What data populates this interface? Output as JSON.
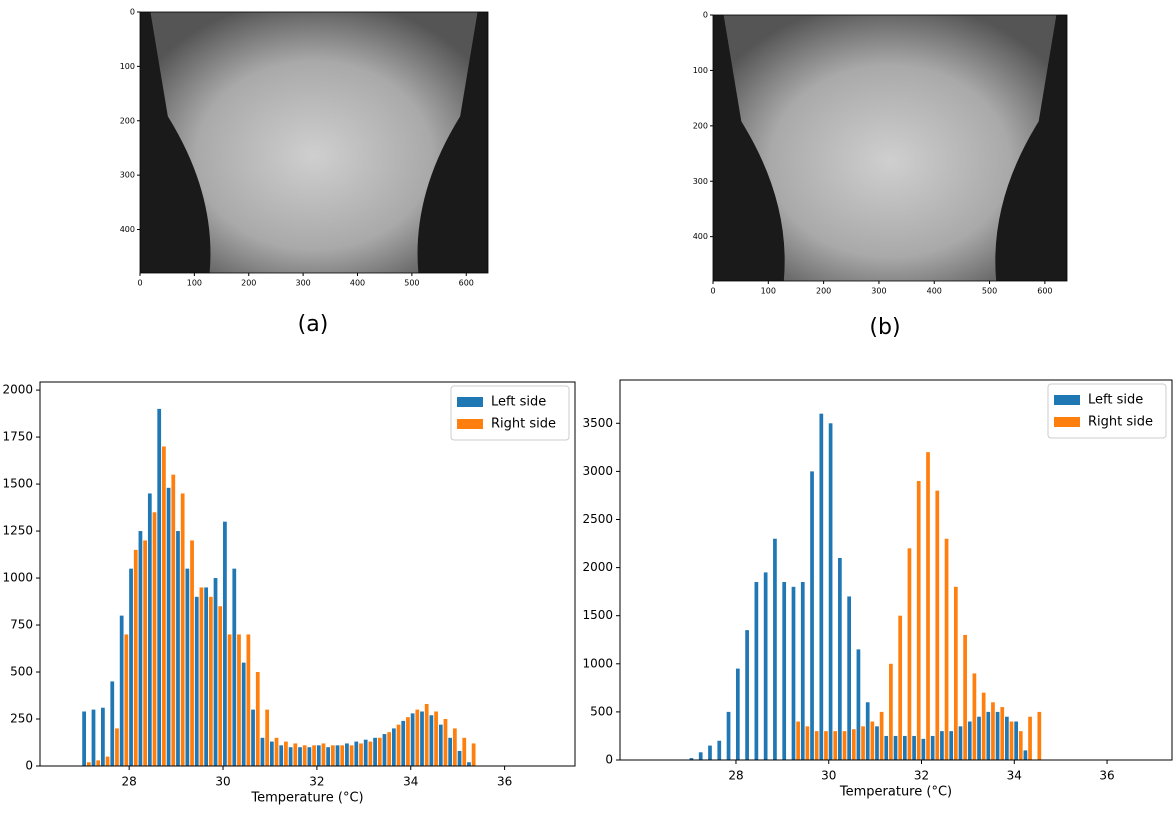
{
  "chart_data": [
    {
      "type": "image",
      "caption": "(a)",
      "xlim": [
        0,
        640
      ],
      "ylim": [
        480,
        0
      ],
      "xticks": [
        0,
        100,
        200,
        300,
        400,
        500,
        600
      ],
      "yticks": [
        0,
        100,
        200,
        300,
        400
      ]
    },
    {
      "type": "image",
      "caption": "(b)",
      "xlim": [
        0,
        640
      ],
      "ylim": [
        480,
        0
      ],
      "xticks": [
        0,
        100,
        200,
        300,
        400,
        500,
        600
      ],
      "yticks": [
        0,
        100,
        200,
        300,
        400
      ]
    },
    {
      "type": "histogram",
      "xlabel": "Temperature (°C)",
      "legend": "upper right",
      "bins": [
        27.0,
        27.2,
        27.4,
        27.6,
        27.8,
        28.0,
        28.2,
        28.4,
        28.6,
        28.8,
        29.0,
        29.2,
        29.4,
        29.6,
        29.8,
        30.0,
        30.2,
        30.4,
        30.6,
        30.8,
        31.0,
        31.2,
        31.4,
        31.6,
        31.8,
        32.0,
        32.2,
        32.4,
        32.6,
        32.8,
        33.0,
        33.2,
        33.4,
        33.6,
        33.8,
        34.0,
        34.2,
        34.4,
        34.6,
        34.8,
        35.0,
        35.2,
        35.4
      ],
      "series": [
        {
          "name": "Left side",
          "color": "#1f77b4",
          "values": [
            290,
            300,
            310,
            450,
            800,
            1050,
            1250,
            1450,
            1900,
            1480,
            1250,
            1050,
            900,
            950,
            1000,
            1300,
            1050,
            550,
            300,
            150,
            130,
            110,
            100,
            100,
            100,
            110,
            100,
            110,
            120,
            130,
            140,
            150,
            170,
            200,
            240,
            280,
            290,
            270,
            220,
            150,
            80,
            20
          ]
        },
        {
          "name": "Right side",
          "color": "#ff7f0e",
          "values": [
            20,
            30,
            50,
            200,
            700,
            1150,
            1200,
            1350,
            1700,
            1550,
            1450,
            1200,
            950,
            900,
            850,
            700,
            700,
            700,
            500,
            300,
            150,
            130,
            120,
            110,
            110,
            120,
            110,
            110,
            110,
            120,
            130,
            150,
            180,
            220,
            260,
            300,
            330,
            290,
            250,
            200,
            150,
            120
          ]
        }
      ],
      "xlim": [
        26.1,
        37.5
      ],
      "xticks": [
        28,
        30,
        32,
        34,
        36
      ],
      "ylim": [
        0,
        2043
      ],
      "yticks": [
        0,
        250,
        500,
        750,
        1000,
        1250,
        1500,
        1750,
        2000
      ]
    },
    {
      "type": "histogram",
      "xlabel": "Temperature (°C)",
      "legend": "upper right",
      "bins": [
        27.0,
        27.2,
        27.4,
        27.6,
        27.8,
        28.0,
        28.2,
        28.4,
        28.6,
        28.8,
        29.0,
        29.2,
        29.4,
        29.6,
        29.8,
        30.0,
        30.2,
        30.4,
        30.6,
        30.8,
        31.0,
        31.2,
        31.4,
        31.6,
        31.8,
        32.0,
        32.2,
        32.4,
        32.6,
        32.8,
        33.0,
        33.2,
        33.4,
        33.6,
        33.8,
        34.0,
        34.2,
        34.4,
        34.6,
        34.8,
        35.0,
        35.2,
        35.4
      ],
      "series": [
        {
          "name": "Left side",
          "color": "#1f77b4",
          "values": [
            20,
            80,
            150,
            200,
            500,
            950,
            1350,
            1850,
            1950,
            2300,
            1850,
            1800,
            1850,
            3000,
            3600,
            3500,
            2100,
            1700,
            1150,
            600,
            350,
            250,
            250,
            250,
            250,
            220,
            250,
            300,
            300,
            350,
            400,
            450,
            500,
            500,
            450,
            400,
            100,
            0,
            0,
            0,
            0,
            0
          ]
        },
        {
          "name": "Right side",
          "color": "#ff7f0e",
          "values": [
            0,
            0,
            0,
            0,
            0,
            0,
            0,
            0,
            0,
            0,
            0,
            400,
            350,
            300,
            300,
            300,
            300,
            320,
            350,
            400,
            500,
            1000,
            1500,
            2200,
            2900,
            3200,
            2800,
            2300,
            1800,
            1300,
            900,
            700,
            600,
            550,
            400,
            300,
            450,
            500,
            0,
            0,
            0,
            0
          ]
        }
      ],
      "xlim": [
        25.5,
        37.4
      ],
      "xticks": [
        28,
        30,
        32,
        34,
        36
      ],
      "ylim": [
        0,
        3950
      ],
      "yticks": [
        0,
        500,
        1000,
        1500,
        2000,
        2500,
        3000,
        3500
      ]
    }
  ]
}
